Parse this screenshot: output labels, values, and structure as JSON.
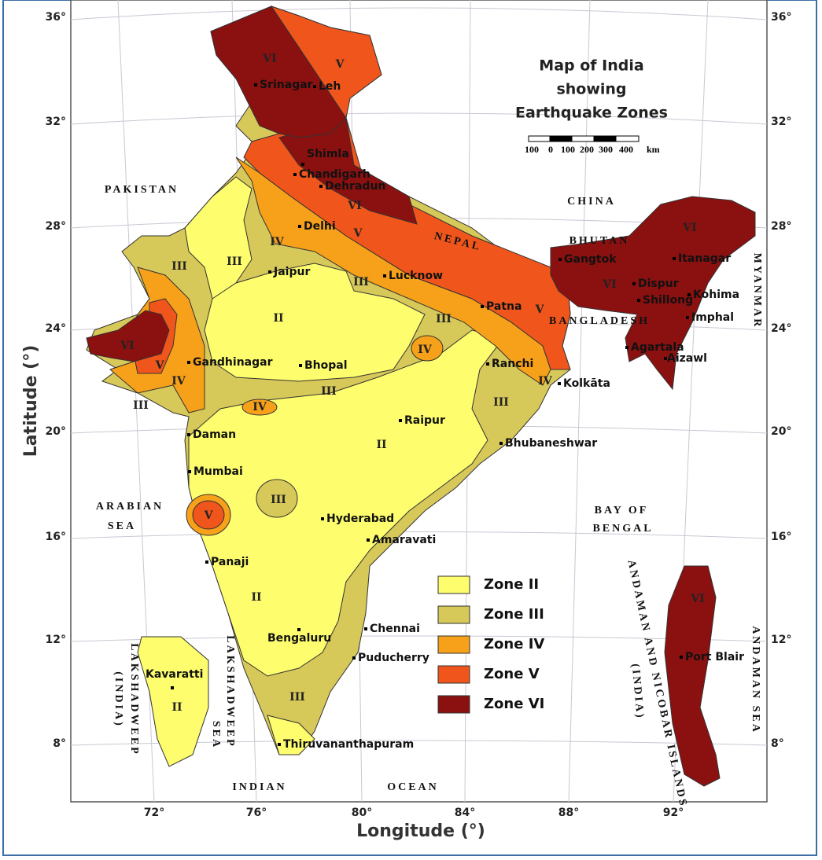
{
  "title": [
    "Map of India",
    "showing",
    "Earthquake Zones"
  ],
  "scale_bar": [
    "100",
    "0",
    "100",
    "200",
    "300",
    "400",
    "km"
  ],
  "axes": {
    "x_label": "Longitude (°)",
    "y_label": "Latitude (°)",
    "lat_ticks": [
      "36°",
      "32°",
      "28°",
      "24°",
      "20°",
      "16°",
      "12°",
      "8°"
    ],
    "lon_ticks": [
      "72°",
      "76°",
      "80°",
      "84°",
      "88°",
      "92°"
    ]
  },
  "regions": [
    "PAKISTAN",
    "CHINA",
    "NEPAL",
    "BHUTAN",
    "BANGLADESH",
    "MYANMAR",
    "ARABIAN",
    "SEA",
    "BAY OF",
    "BENGAL",
    "INDIAN",
    "OCEAN",
    "LAKSHADWEEP",
    "(INDIA)",
    "LAKSHADWEEP",
    "SEA",
    "ANDAMAN AND NICOBAR ISLANDS",
    "(INDIA)",
    "ANDAMAN SEA"
  ],
  "cities": [
    "Srinagar",
    "Leh",
    "Shimla",
    "Chandigarh",
    "Dehradun",
    "Delhi",
    "Jaipur",
    "Lucknow",
    "Patna",
    "Gangtok",
    "Itanagar",
    "Dispur",
    "Kohima",
    "Shillong",
    "Imphal",
    "Agartala",
    "Aizawl",
    "Gandhinagar",
    "Bhopal",
    "Ranchi",
    "Kolkāta",
    "Raipur",
    "Bhubaneshwar",
    "Daman",
    "Mumbai",
    "Hyderabad",
    "Amaravati",
    "Panaji",
    "Bengaluru",
    "Chennai",
    "Puducherry",
    "Thiruvananthapuram",
    "Kavaratti",
    "Port Blair"
  ],
  "zone_labels": [
    "VI",
    "V",
    "VI",
    "V",
    "IV",
    "III",
    "III",
    "III",
    "II",
    "III",
    "IV",
    "VI",
    "V",
    "IV",
    "III",
    "III",
    "IV",
    "III",
    "IV",
    "II",
    "III",
    "V",
    "II",
    "III",
    "II",
    "VI",
    "VI",
    "V",
    "VI"
  ],
  "legend": [
    "Zone II",
    "Zone III",
    "Zone IV",
    "Zone V",
    "Zone VI"
  ]
}
